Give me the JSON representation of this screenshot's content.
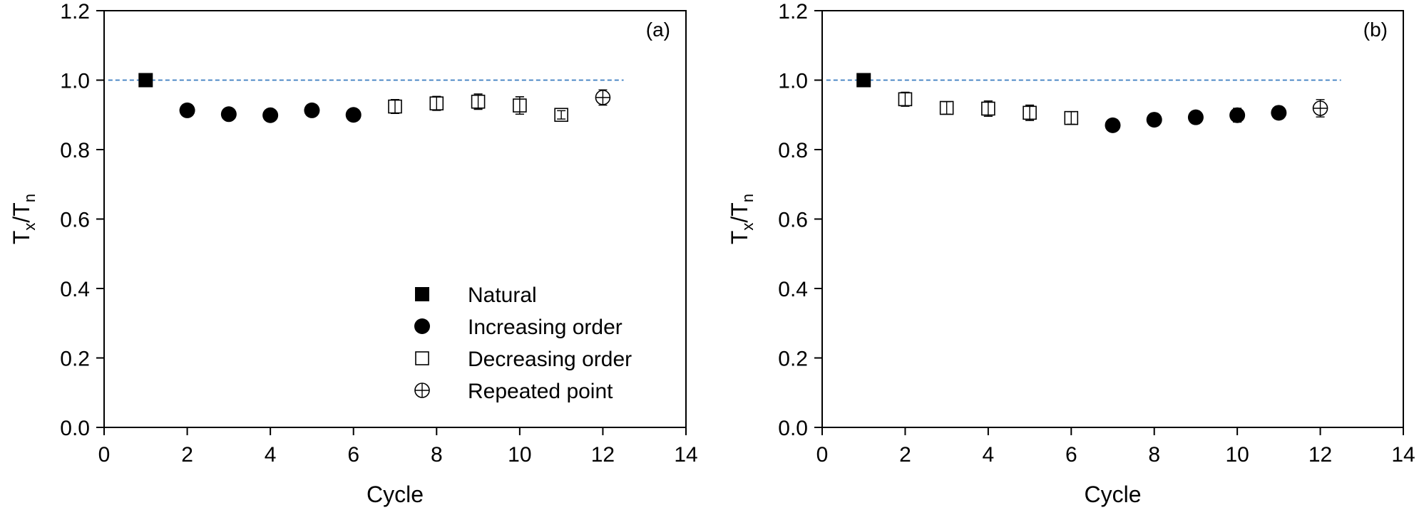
{
  "chart_data": [
    {
      "type": "scatter",
      "panel_label": "(a)",
      "xlabel": "Cycle",
      "ylabel": {
        "base": "T",
        "sub1": "x",
        "slash": "/T",
        "sub2": "n"
      },
      "xlim": [
        0,
        14
      ],
      "ylim": [
        0,
        1.2
      ],
      "xticks": [
        "0",
        "2",
        "4",
        "6",
        "8",
        "10",
        "12",
        "14"
      ],
      "yticks": [
        "0.0",
        "0.2",
        "0.4",
        "0.6",
        "0.8",
        "1.0",
        "1.2"
      ],
      "reference_line": {
        "y": 1.0,
        "x_range": [
          0.1,
          12.5
        ],
        "style": "dashed",
        "color": "#3a7cc0"
      },
      "series": [
        {
          "name": "Natural",
          "marker": "filled-square",
          "points": [
            {
              "x": 1,
              "y": 1.0
            }
          ]
        },
        {
          "name": "Increasing order",
          "marker": "filled-circle",
          "points": [
            {
              "x": 2,
              "y": 0.913
            },
            {
              "x": 3,
              "y": 0.902
            },
            {
              "x": 4,
              "y": 0.899
            },
            {
              "x": 5,
              "y": 0.913
            },
            {
              "x": 6,
              "y": 0.9
            }
          ]
        },
        {
          "name": "Decreasing order",
          "marker": "open-square",
          "points": [
            {
              "x": 7,
              "y": 0.924,
              "err": 0.02
            },
            {
              "x": 8,
              "y": 0.933,
              "err": 0.02
            },
            {
              "x": 9,
              "y": 0.938,
              "err": 0.022
            },
            {
              "x": 10,
              "y": 0.927,
              "err": 0.025
            },
            {
              "x": 11,
              "y": 0.9,
              "err": 0.012
            }
          ]
        },
        {
          "name": "Repeated point",
          "marker": "crossed-circle",
          "points": [
            {
              "x": 12,
              "y": 0.95,
              "err": 0.022
            }
          ]
        }
      ],
      "legend": {
        "placement": "bottom-right"
      }
    },
    {
      "type": "scatter",
      "panel_label": "(b)",
      "xlabel": "Cycle",
      "ylabel": {
        "base": "T",
        "sub1": "x",
        "slash": "/T",
        "sub2": "n"
      },
      "xlim": [
        0,
        14
      ],
      "ylim": [
        0,
        1.2
      ],
      "xticks": [
        "0",
        "2",
        "4",
        "6",
        "8",
        "10",
        "12",
        "14"
      ],
      "yticks": [
        "0.0",
        "0.2",
        "0.4",
        "0.6",
        "0.8",
        "1.0",
        "1.2"
      ],
      "reference_line": {
        "y": 1.0,
        "x_range": [
          0.1,
          12.5
        ],
        "style": "dashed",
        "color": "#3a7cc0"
      },
      "series": [
        {
          "name": "Natural",
          "marker": "filled-square",
          "points": [
            {
              "x": 1,
              "y": 1.0
            }
          ]
        },
        {
          "name": "Decreasing order",
          "marker": "open-square",
          "points": [
            {
              "x": 2,
              "y": 0.945,
              "err": 0.02
            },
            {
              "x": 3,
              "y": 0.92,
              "err": 0.018
            },
            {
              "x": 4,
              "y": 0.918,
              "err": 0.022
            },
            {
              "x": 5,
              "y": 0.906,
              "err": 0.022
            },
            {
              "x": 6,
              "y": 0.891,
              "err": 0.018
            }
          ]
        },
        {
          "name": "Increasing order",
          "marker": "filled-circle",
          "points": [
            {
              "x": 7,
              "y": 0.87,
              "err": 0.015
            },
            {
              "x": 8,
              "y": 0.886,
              "err": 0.018
            },
            {
              "x": 9,
              "y": 0.893,
              "err": 0.018
            },
            {
              "x": 10,
              "y": 0.899,
              "err": 0.02
            },
            {
              "x": 11,
              "y": 0.906,
              "err": 0.018
            }
          ]
        },
        {
          "name": "Repeated point",
          "marker": "crossed-circle",
          "points": [
            {
              "x": 12,
              "y": 0.919,
              "err": 0.025
            }
          ]
        }
      ]
    }
  ]
}
